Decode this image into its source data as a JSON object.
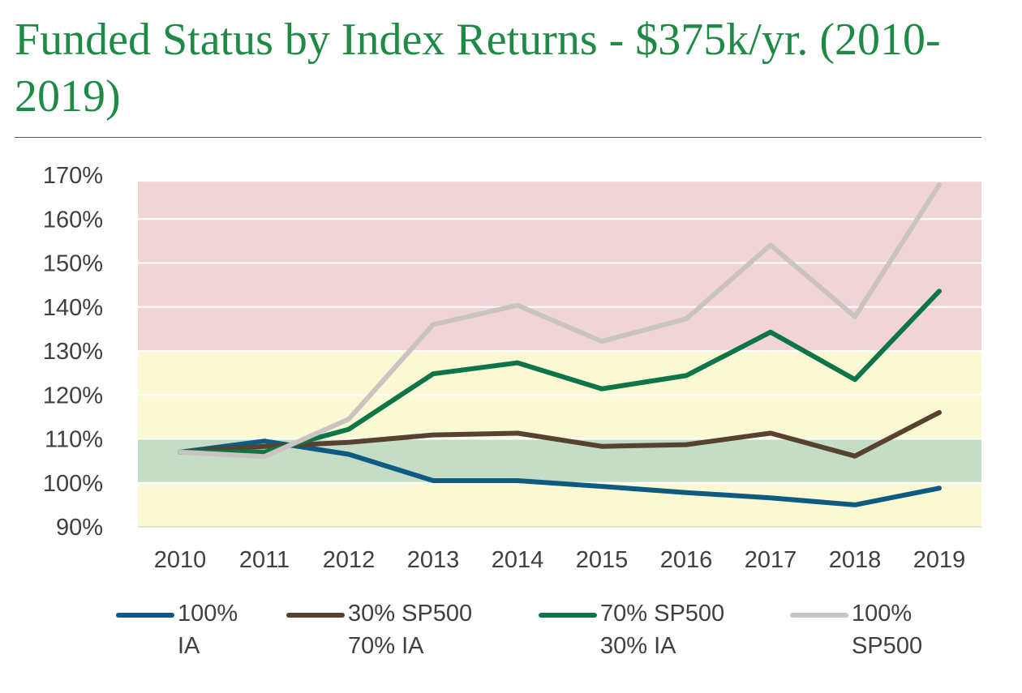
{
  "title": "Funded Status by Index Returns - $375k/yr. (2010-2019)",
  "chart_data": {
    "type": "line",
    "title": "Funded Status by Index Returns - $375k/yr. (2010-2019)",
    "xlabel": "",
    "ylabel": "",
    "categories": [
      "2010",
      "2011",
      "2012",
      "2013",
      "2014",
      "2015",
      "2016",
      "2017",
      "2018",
      "2019"
    ],
    "ylim": [
      90,
      170
    ],
    "yticks": [
      90,
      100,
      110,
      120,
      130,
      140,
      150,
      160,
      170
    ],
    "ytick_labels": [
      "90%",
      "100%",
      "110%",
      "120%",
      "130%",
      "140%",
      "150%",
      "160%",
      "170%"
    ],
    "grid": true,
    "legend_position": "bottom",
    "bands": [
      {
        "from": 90,
        "to": 100,
        "color": "#fbf8d4"
      },
      {
        "from": 100,
        "to": 110,
        "color": "#c5ddc6"
      },
      {
        "from": 110,
        "to": 130,
        "color": "#fbf8d4"
      },
      {
        "from": 130,
        "to": 170,
        "color": "#f1d5d6"
      }
    ],
    "series": [
      {
        "name": "100% IA",
        "color": "#0d5b80",
        "values": [
          107,
          109.5,
          106.5,
          100.5,
          100.5,
          99.2,
          97.8,
          96.6,
          95,
          98.8
        ]
      },
      {
        "name": "30% SP500 70% IA",
        "color": "#574230",
        "values": [
          107,
          108.3,
          109.2,
          110.9,
          111.3,
          108.3,
          108.7,
          111.3,
          106.1,
          116
        ]
      },
      {
        "name": "70% SP500 30% IA",
        "color": "#0e7548",
        "values": [
          107,
          107,
          112.2,
          124.8,
          127.3,
          121.4,
          124.4,
          134.3,
          123.5,
          143.6
        ]
      },
      {
        "name": "100% SP500",
        "color": "#c9c4bf",
        "values": [
          107,
          106,
          114.5,
          136,
          140.4,
          132.2,
          137.3,
          154.1,
          137.8,
          167.8
        ]
      }
    ]
  },
  "legend": [
    {
      "label": "100%\nIA",
      "color": "#0d5b80"
    },
    {
      "label": "30% SP500\n70% IA",
      "color": "#574230"
    },
    {
      "label": "70% SP500\n30% IA",
      "color": "#0e7548"
    },
    {
      "label": "100%\nSP500",
      "color": "#c9c4bf"
    }
  ]
}
